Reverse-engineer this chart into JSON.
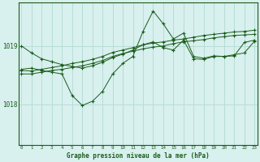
{
  "title": "Graphe pression niveau de la mer (hPa)",
  "bg_color": "#d8f0ee",
  "grid_color": "#b8ddd8",
  "line_color": "#1a5c1a",
  "x_ticks": [
    0,
    1,
    2,
    3,
    4,
    5,
    6,
    7,
    8,
    9,
    10,
    11,
    12,
    13,
    14,
    15,
    16,
    17,
    18,
    19,
    20,
    21,
    22,
    23
  ],
  "y_ticks": [
    1018,
    1019
  ],
  "ylim": [
    1017.3,
    1019.75
  ],
  "xlim": [
    -0.3,
    23.3
  ],
  "series": [
    [
      1019.0,
      1018.88,
      1018.78,
      1018.73,
      1018.68,
      1018.65,
      1018.62,
      1018.66,
      1018.72,
      1018.8,
      1018.86,
      1018.93,
      1019.02,
      1019.07,
      1018.97,
      1018.93,
      1019.1,
      1018.78,
      1018.77,
      1018.82,
      1018.82,
      1018.83,
      1019.06,
      1019.1
    ],
    [
      1018.58,
      1018.57,
      1018.6,
      1018.63,
      1018.66,
      1018.7,
      1018.73,
      1018.77,
      1018.82,
      1018.89,
      1018.93,
      1018.97,
      1019.02,
      1019.05,
      1019.07,
      1019.1,
      1019.12,
      1019.15,
      1019.18,
      1019.2,
      1019.22,
      1019.24,
      1019.25,
      1019.27
    ],
    [
      1018.52,
      1018.52,
      1018.55,
      1018.58,
      1018.6,
      1018.63,
      1018.66,
      1018.7,
      1018.75,
      1018.82,
      1018.87,
      1018.91,
      1018.95,
      1018.98,
      1019.0,
      1019.04,
      1019.07,
      1019.09,
      1019.11,
      1019.14,
      1019.16,
      1019.18,
      1019.19,
      1019.2
    ],
    [
      1018.6,
      1018.62,
      1018.58,
      1018.55,
      1018.52,
      1018.15,
      1017.98,
      1018.05,
      1018.22,
      1018.52,
      1018.7,
      1018.82,
      1019.25,
      1019.6,
      1019.38,
      1019.12,
      1019.22,
      1018.82,
      1018.79,
      1018.83,
      1018.82,
      1018.85,
      1018.88,
      1019.08
    ]
  ]
}
